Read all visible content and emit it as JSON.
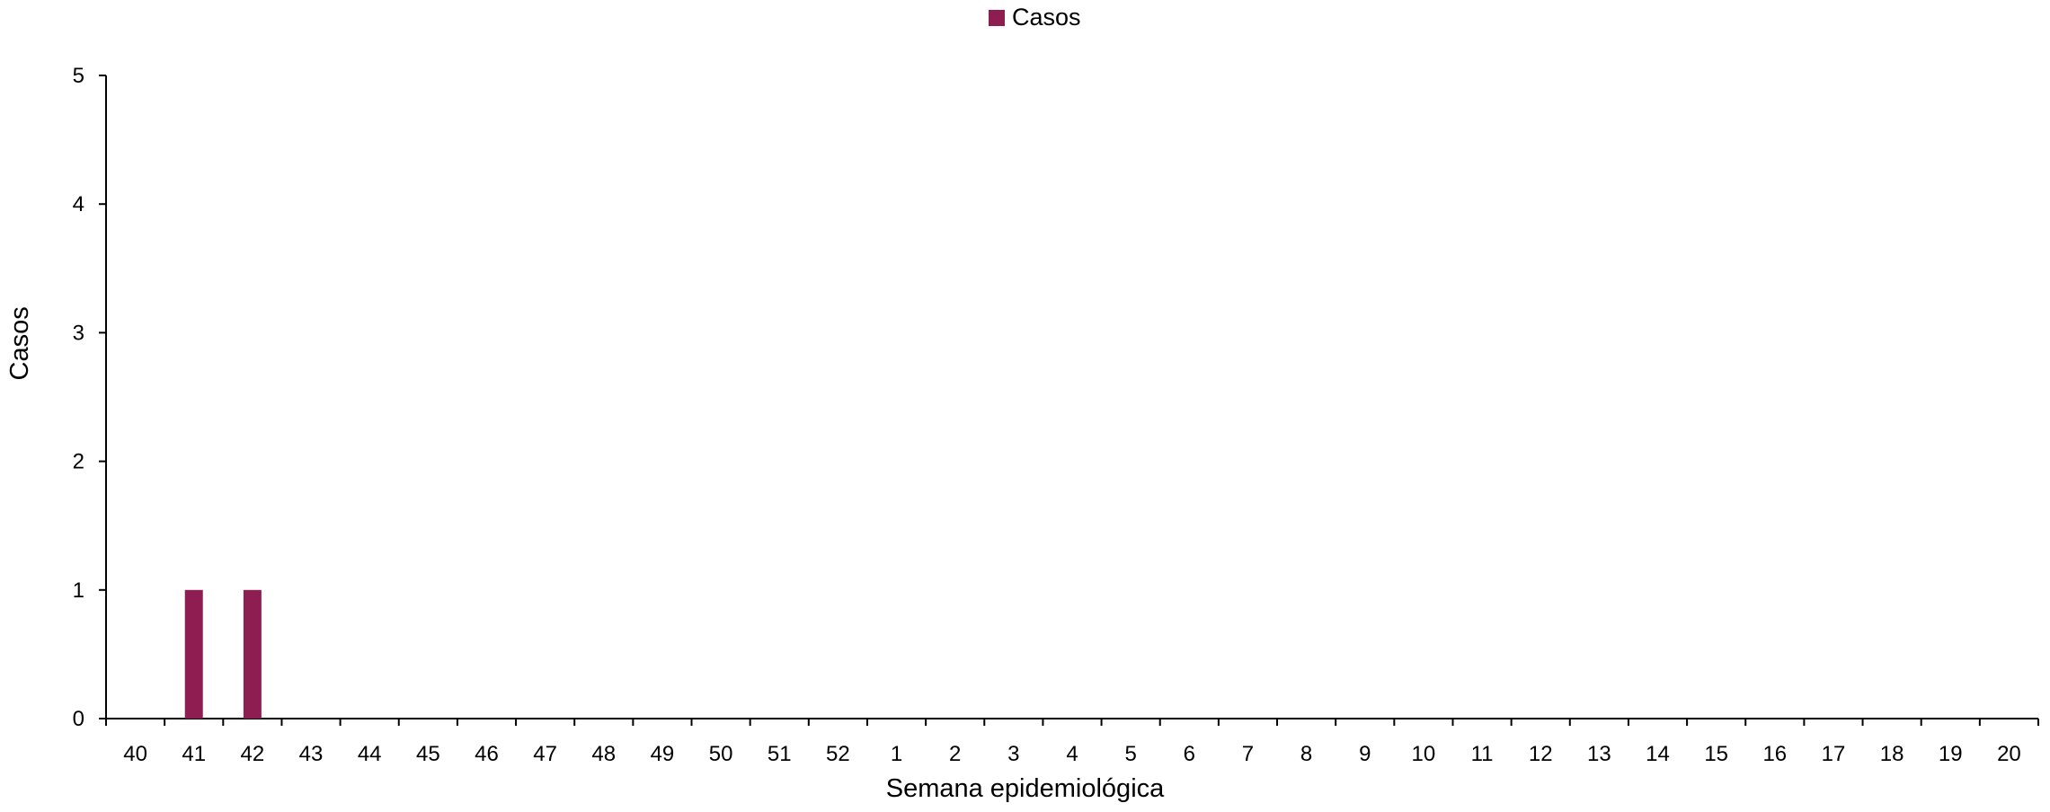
{
  "legend": {
    "label": "Casos",
    "color": "#8E1E51"
  },
  "chart_data": {
    "type": "bar",
    "title": "",
    "xlabel": "Semana epidemiológica",
    "ylabel": "Casos",
    "ylim": [
      0,
      5
    ],
    "yticks": [
      0,
      1,
      2,
      3,
      4,
      5
    ],
    "grid": false,
    "legend_position": "top-center",
    "categories": [
      "40",
      "41",
      "42",
      "43",
      "44",
      "45",
      "46",
      "47",
      "48",
      "49",
      "50",
      "51",
      "52",
      "1",
      "2",
      "3",
      "4",
      "5",
      "6",
      "7",
      "8",
      "9",
      "10",
      "11",
      "12",
      "13",
      "14",
      "15",
      "16",
      "17",
      "18",
      "19",
      "20"
    ],
    "series": [
      {
        "name": "Casos",
        "color": "#8E1E51",
        "values": [
          0,
          1,
          1,
          0,
          0,
          0,
          0,
          0,
          0,
          0,
          0,
          0,
          0,
          0,
          0,
          0,
          0,
          0,
          0,
          0,
          0,
          0,
          0,
          0,
          0,
          0,
          0,
          0,
          0,
          0,
          0,
          0,
          0
        ]
      }
    ]
  }
}
